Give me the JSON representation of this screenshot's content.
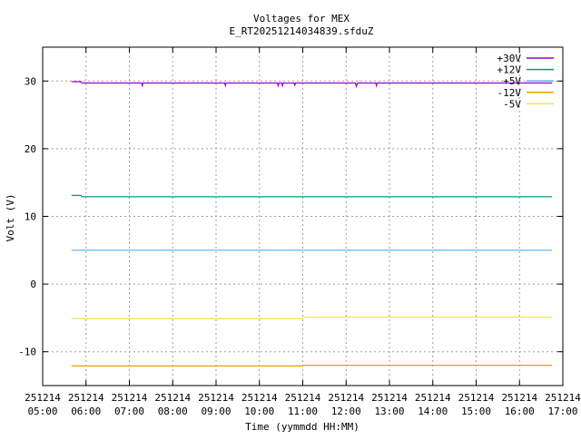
{
  "chart_data": {
    "type": "line",
    "title": "Voltages for MEX",
    "subtitle": "E_RT20251214034839.sfduZ",
    "xlabel": "Time (yymmdd HH:MM)",
    "ylabel": "Volt (V)",
    "xlim": [
      "05:00",
      "17:00"
    ],
    "ylim": [
      -15,
      35
    ],
    "x_ticks": [
      {
        "date": "251214",
        "time": "05:00"
      },
      {
        "date": "251214",
        "time": "06:00"
      },
      {
        "date": "251214",
        "time": "07:00"
      },
      {
        "date": "251214",
        "time": "08:00"
      },
      {
        "date": "251214",
        "time": "09:00"
      },
      {
        "date": "251214",
        "time": "10:00"
      },
      {
        "date": "251214",
        "time": "11:00"
      },
      {
        "date": "251214",
        "time": "12:00"
      },
      {
        "date": "251214",
        "time": "13:00"
      },
      {
        "date": "251214",
        "time": "14:00"
      },
      {
        "date": "251214",
        "time": "15:00"
      },
      {
        "date": "251214",
        "time": "16:00"
      },
      {
        "date": "251214",
        "time": "17:00"
      }
    ],
    "y_ticks": [
      "-10",
      "0",
      "10",
      "20",
      "30"
    ],
    "grid": true,
    "legend_position": "top-right",
    "series": [
      {
        "name": "+30V",
        "color": "#9400d3",
        "points": [
          [
            "05:40",
            29.9
          ],
          [
            "05:53",
            29.9
          ],
          [
            "05:54",
            29.7
          ],
          [
            "07:17",
            29.7
          ],
          [
            "07:18",
            29.3
          ],
          [
            "07:19",
            29.7
          ],
          [
            "09:12",
            29.7
          ],
          [
            "09:13",
            29.3
          ],
          [
            "09:14",
            29.7
          ],
          [
            "10:25",
            29.7
          ],
          [
            "10:26",
            29.3
          ],
          [
            "10:27",
            29.7
          ],
          [
            "10:31",
            29.7
          ],
          [
            "10:32",
            29.3
          ],
          [
            "10:33",
            29.7
          ],
          [
            "10:48",
            29.7
          ],
          [
            "10:49",
            29.3
          ],
          [
            "10:50",
            29.7
          ],
          [
            "12:13",
            29.7
          ],
          [
            "12:14",
            29.2
          ],
          [
            "12:16",
            29.7
          ],
          [
            "12:41",
            29.7
          ],
          [
            "12:42",
            29.3
          ],
          [
            "12:43",
            29.7
          ],
          [
            "16:45",
            29.7
          ]
        ]
      },
      {
        "name": "+12V",
        "color": "#009e73",
        "points": [
          [
            "05:40",
            13.1
          ],
          [
            "05:53",
            13.1
          ],
          [
            "05:54",
            12.9
          ],
          [
            "16:45",
            12.9
          ]
        ]
      },
      {
        "name": "+5V",
        "color": "#56b4e9",
        "points": [
          [
            "05:40",
            5.0
          ],
          [
            "16:45",
            5.0
          ]
        ]
      },
      {
        "name": "-12V",
        "color": "#e69f00",
        "points": [
          [
            "05:40",
            -12.1
          ],
          [
            "11:00",
            -12.1
          ],
          [
            "11:01",
            -12.0
          ],
          [
            "16:45",
            -12.0
          ]
        ]
      },
      {
        "name": "-5V",
        "color": "#f0e442",
        "points": [
          [
            "05:40",
            -5.1
          ],
          [
            "11:00",
            -5.1
          ],
          [
            "11:01",
            -4.9
          ],
          [
            "16:45",
            -4.9
          ]
        ]
      }
    ]
  }
}
